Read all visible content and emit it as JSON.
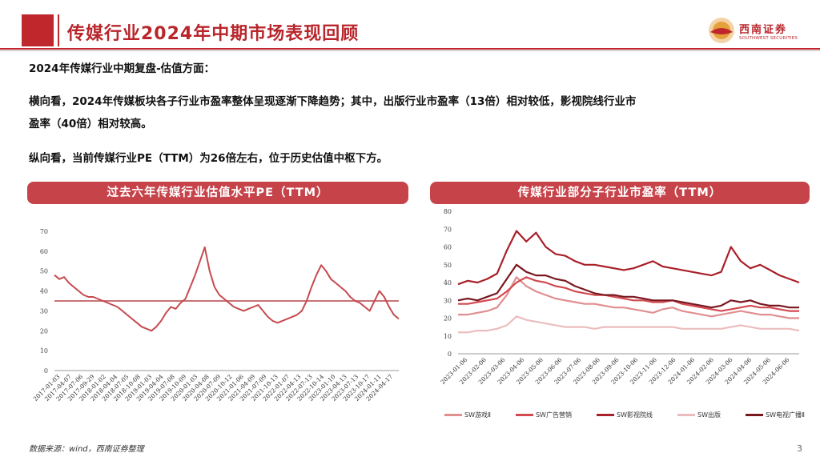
{
  "header": {
    "title": "传媒行业2024年中期市场表现回顾",
    "logo_cn": "西南证券",
    "logo_en": "SOUTHWEST SECURITIES"
  },
  "body": {
    "line1": "2024年传媒行业中期复盘-估值方面：",
    "line2a": "横向看，2024年传媒板块各子行业市盈率整体呈现逐渐下降趋势；其中，出版行业市盈率（13倍）相对较低，影视院线行业市",
    "line2b": "盈率（40倍）相对较高。",
    "line3": "纵向看，当前传媒行业PE（TTM）为26倍左右，位于历史估值中枢下方。"
  },
  "footer": {
    "source": "数据来源：wind，西南证券整理",
    "page": "3"
  },
  "colors": {
    "brand_red": "#c0272d",
    "banner": "#c7434a",
    "line1": "#c64a4f",
    "avg_line": "#c97377"
  },
  "chart_data": [
    {
      "type": "line",
      "title": "过去六年传媒行业估值水平PE（TTM）",
      "ylim": [
        0,
        70
      ],
      "yticks": [
        0,
        10,
        20,
        30,
        40,
        50,
        60,
        70
      ],
      "xtick_labels": [
        "2017-01-03",
        "2017-04-07",
        "2017-07-06",
        "2017-09-29",
        "2018-01-02",
        "2018-04-04",
        "2018-07-05",
        "2018-10-08",
        "2019-01-03",
        "2019-04-04",
        "2019-07-08",
        "2019-10-09",
        "2020-01-03",
        "2020-04-08",
        "2020-07-09",
        "2020-10-12",
        "2021-01-06",
        "2021-04-09",
        "2021-07-09",
        "2021-10-13",
        "2022-01-07",
        "2022-04-13",
        "2022-07-13",
        "2022-10-14",
        "2023-01-10",
        "2023-04-13",
        "2023-07-13",
        "2023-10-17",
        "2024-01-11",
        "2024-04-17"
      ],
      "grid": false,
      "reference_line": 35,
      "series": [
        {
          "values": [
            48,
            46,
            47,
            44,
            42,
            40,
            38,
            37,
            37,
            36,
            35,
            34,
            33,
            32,
            30,
            28,
            26,
            24,
            22,
            21,
            20,
            22,
            25,
            29,
            32,
            31,
            34,
            36,
            42,
            48,
            55,
            62,
            50,
            42,
            38,
            36,
            34,
            32,
            31,
            30,
            31,
            32,
            33,
            30,
            27,
            25,
            24,
            25,
            26,
            27,
            28,
            30,
            35,
            42,
            48,
            53,
            50,
            46,
            44,
            42,
            40,
            37,
            35,
            34,
            32,
            30,
            35,
            40,
            37,
            32,
            28,
            26
          ]
        }
      ]
    },
    {
      "type": "line",
      "title": "传媒行业部分子行业市盈率（TTM）",
      "ylim": [
        0,
        80
      ],
      "yticks": [
        0,
        10,
        20,
        30,
        40,
        50,
        60,
        70,
        80
      ],
      "xtick_labels": [
        "2023-01-06",
        "2023-02-06",
        "2023-03-06",
        "2023-04-06",
        "2023-05-06",
        "2023-06-06",
        "2023-07-06",
        "2023-08-06",
        "2023-09-06",
        "2023-10-06",
        "2023-11-06",
        "2023-12-06",
        "2024-01-06",
        "2024-02-06",
        "2024-03-06",
        "2024-04-06",
        "2024-05-06",
        "2024-06-06"
      ],
      "legend_position": "bottom",
      "series": [
        {
          "name": "SW游戏Ⅱ",
          "color": "#e08e90",
          "values": [
            22,
            22,
            23,
            24,
            26,
            33,
            43,
            38,
            35,
            33,
            31,
            30,
            29,
            28,
            28,
            27,
            26,
            26,
            25,
            24,
            23,
            25,
            26,
            24,
            23,
            22,
            21,
            22,
            23,
            24,
            23,
            22,
            22,
            21,
            20,
            20
          ]
        },
        {
          "name": "SW广告营销",
          "color": "#d24a50",
          "values": [
            28,
            28,
            29,
            30,
            31,
            35,
            40,
            43,
            41,
            40,
            38,
            37,
            35,
            34,
            33,
            33,
            32,
            31,
            30,
            30,
            29,
            29,
            30,
            28,
            27,
            26,
            25,
            24,
            25,
            26,
            27,
            26,
            26,
            25,
            24,
            24
          ]
        },
        {
          "name": "SW影视院线",
          "color": "#a8202a",
          "values": [
            39,
            41,
            40,
            42,
            45,
            58,
            69,
            63,
            68,
            60,
            56,
            55,
            52,
            50,
            50,
            49,
            48,
            47,
            48,
            50,
            52,
            49,
            48,
            47,
            46,
            45,
            44,
            46,
            60,
            52,
            48,
            50,
            47,
            44,
            42,
            40
          ]
        },
        {
          "name": "SW出版",
          "color": "#ebbcbe",
          "values": [
            12,
            12,
            13,
            13,
            14,
            16,
            21,
            19,
            18,
            17,
            16,
            15,
            15,
            15,
            14,
            15,
            15,
            15,
            15,
            15,
            15,
            15,
            15,
            14,
            14,
            14,
            14,
            14,
            15,
            16,
            15,
            14,
            14,
            14,
            14,
            13
          ]
        },
        {
          "name": "SW电视广播Ⅱ",
          "color": "#7a1820",
          "values": [
            30,
            31,
            30,
            32,
            34,
            42,
            50,
            46,
            44,
            44,
            42,
            41,
            38,
            36,
            34,
            33,
            33,
            32,
            32,
            31,
            30,
            30,
            30,
            29,
            28,
            27,
            26,
            27,
            30,
            29,
            30,
            28,
            27,
            27,
            26,
            26
          ]
        }
      ]
    }
  ]
}
